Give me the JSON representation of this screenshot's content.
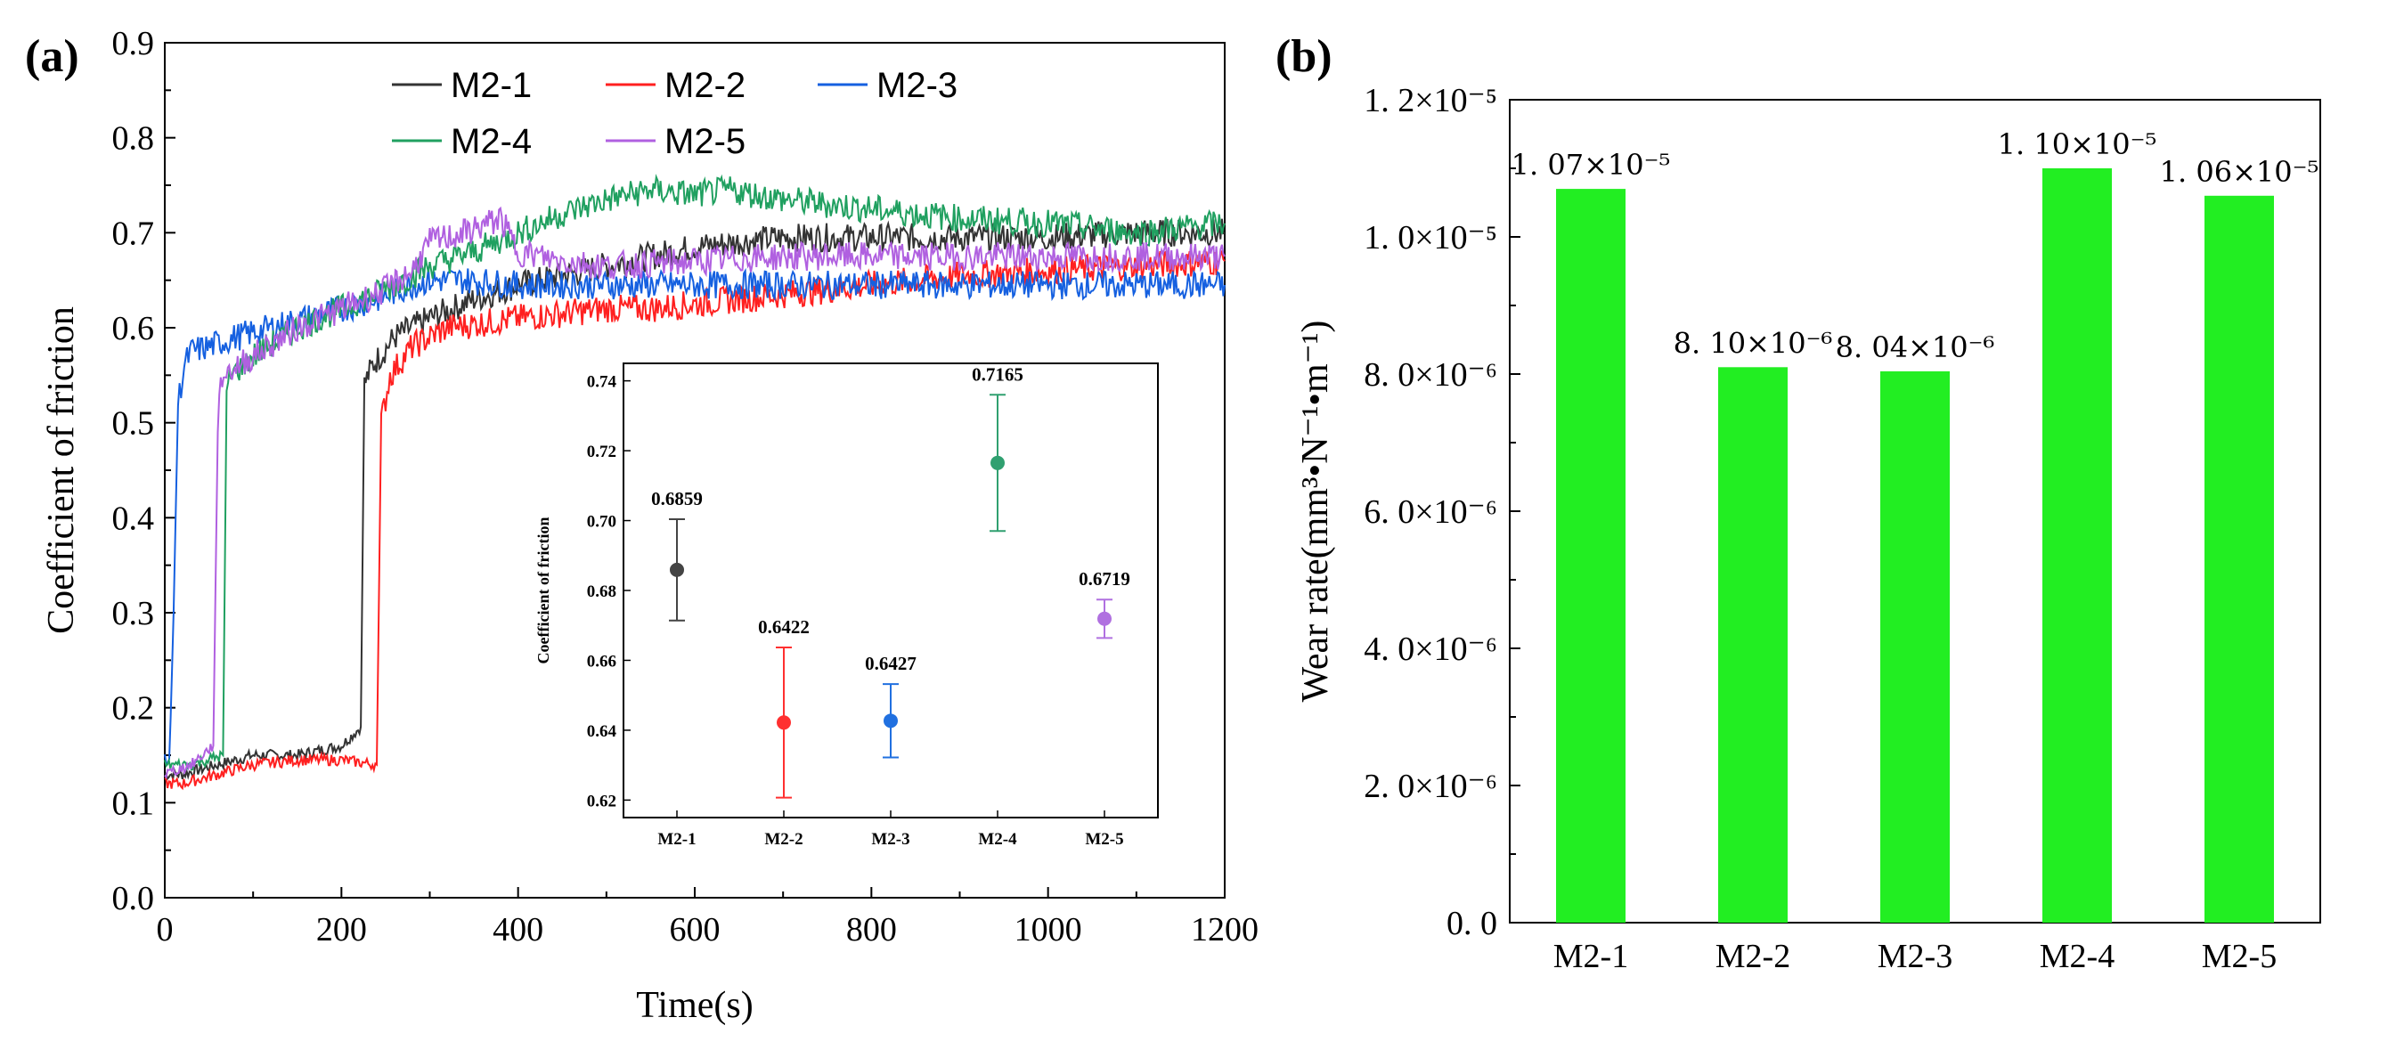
{
  "panel_a": {
    "label": "(a)"
  },
  "panel_b": {
    "label": "(b)"
  },
  "chart_data": [
    {
      "type": "line",
      "panel": "(a)",
      "xlabel": "Time(s)",
      "ylabel": "Coefficient of friction",
      "xlim": [
        0,
        1200
      ],
      "ylim": [
        0.0,
        0.9
      ],
      "xticks": [
        "0",
        "200",
        "400",
        "600",
        "800",
        "1000",
        "1200"
      ],
      "yticks": [
        "0.0",
        "0.1",
        "0.2",
        "0.3",
        "0.4",
        "0.5",
        "0.6",
        "0.7",
        "0.8",
        "0.9"
      ],
      "legend_position": "top",
      "series": [
        {
          "name": "M2-1",
          "color": "#333333",
          "x": [
            0,
            20,
            60,
            100,
            150,
            200,
            222,
            226,
            235,
            260,
            300,
            350,
            400,
            450,
            500,
            550,
            600,
            650,
            700,
            800,
            900,
            1000,
            1100,
            1200
          ],
          "y": [
            0.13,
            0.13,
            0.14,
            0.15,
            0.15,
            0.16,
            0.18,
            0.54,
            0.56,
            0.59,
            0.61,
            0.63,
            0.645,
            0.655,
            0.665,
            0.675,
            0.685,
            0.69,
            0.695,
            0.695,
            0.695,
            0.695,
            0.7,
            0.7
          ]
        },
        {
          "name": "M2-2",
          "color": "#ff2020",
          "x": [
            0,
            20,
            60,
            100,
            150,
            200,
            240,
            245,
            255,
            280,
            320,
            360,
            400,
            450,
            500,
            550,
            600,
            650,
            700,
            800,
            900,
            1000,
            1100,
            1200
          ],
          "y": [
            0.12,
            0.12,
            0.13,
            0.14,
            0.145,
            0.145,
            0.14,
            0.5,
            0.55,
            0.58,
            0.6,
            0.605,
            0.61,
            0.615,
            0.62,
            0.62,
            0.625,
            0.63,
            0.635,
            0.645,
            0.655,
            0.66,
            0.665,
            0.67
          ]
        },
        {
          "name": "M2-3",
          "color": "#1560e0",
          "x": [
            0,
            5,
            10,
            15,
            22,
            30,
            50,
            80,
            120,
            160,
            200,
            240,
            280,
            300,
            340,
            400,
            500,
            600,
            700,
            800,
            900,
            1000,
            1100,
            1200
          ],
          "y": [
            0.15,
            0.14,
            0.3,
            0.52,
            0.56,
            0.575,
            0.58,
            0.59,
            0.6,
            0.61,
            0.62,
            0.63,
            0.645,
            0.65,
            0.65,
            0.645,
            0.645,
            0.645,
            0.645,
            0.645,
            0.645,
            0.645,
            0.645,
            0.645
          ]
        },
        {
          "name": "M2-4",
          "color": "#20a060",
          "x": [
            0,
            30,
            66,
            70,
            75,
            100,
            150,
            200,
            250,
            300,
            350,
            400,
            450,
            500,
            550,
            600,
            640,
            700,
            800,
            900,
            1000,
            1100,
            1200
          ],
          "y": [
            0.14,
            0.14,
            0.15,
            0.53,
            0.55,
            0.57,
            0.6,
            0.62,
            0.64,
            0.665,
            0.68,
            0.7,
            0.72,
            0.735,
            0.745,
            0.74,
            0.745,
            0.735,
            0.725,
            0.715,
            0.71,
            0.7,
            0.71
          ]
        },
        {
          "name": "M2-5",
          "color": "#b060e0",
          "x": [
            0,
            30,
            55,
            60,
            65,
            100,
            150,
            200,
            250,
            280,
            300,
            340,
            380,
            400,
            450,
            500,
            600,
            700,
            800,
            900,
            1000,
            1100,
            1200
          ],
          "y": [
            0.13,
            0.14,
            0.16,
            0.5,
            0.55,
            0.57,
            0.6,
            0.62,
            0.64,
            0.66,
            0.69,
            0.7,
            0.715,
            0.68,
            0.67,
            0.665,
            0.67,
            0.675,
            0.675,
            0.675,
            0.675,
            0.675,
            0.675
          ]
        }
      ],
      "inset": {
        "type": "scatter",
        "ylabel": "Coefficient of friction",
        "ylim": [
          0.615,
          0.745
        ],
        "yticks": [
          "0.62",
          "0.64",
          "0.66",
          "0.68",
          "0.70",
          "0.72",
          "0.74"
        ],
        "categories": [
          "M2-1",
          "M2-2",
          "M2-3",
          "M2-4",
          "M2-5"
        ],
        "values": [
          0.6859,
          0.6422,
          0.6427,
          0.7165,
          0.6719
        ],
        "errors": [
          0.0145,
          0.0215,
          0.0105,
          0.0195,
          0.0055
        ],
        "value_labels": [
          "0.6859",
          "0.6422",
          "0.6427",
          "0.7165",
          "0.6719"
        ],
        "colors": [
          "#444444",
          "#ff3030",
          "#2070e0",
          "#30a070",
          "#b070e0"
        ]
      }
    },
    {
      "type": "bar",
      "panel": "(b)",
      "ylabel": "Wear rate(mm³•N⁻¹•m⁻¹)",
      "ylim": [
        0,
        1.2e-05
      ],
      "yticks": [
        "0. 0",
        "2. 0×10⁻⁶",
        "4. 0×10⁻⁶",
        "6. 0×10⁻⁶",
        "8. 0×10⁻⁶",
        "1. 0×10⁻⁵",
        "1. 2×10⁻⁵"
      ],
      "categories": [
        "M2-1",
        "M2-2",
        "M2-3",
        "M2-4",
        "M2-5"
      ],
      "values": [
        1.07e-05,
        8.1e-06,
        8.04e-06,
        1.1e-05,
        1.06e-05
      ],
      "value_labels": [
        "1. 07×10⁻⁵",
        "8. 10×10⁻⁶",
        "8. 04×10⁻⁶",
        "1. 10×10⁻⁵",
        "1. 06×10⁻⁵"
      ],
      "bar_color": "#22ee22"
    }
  ]
}
